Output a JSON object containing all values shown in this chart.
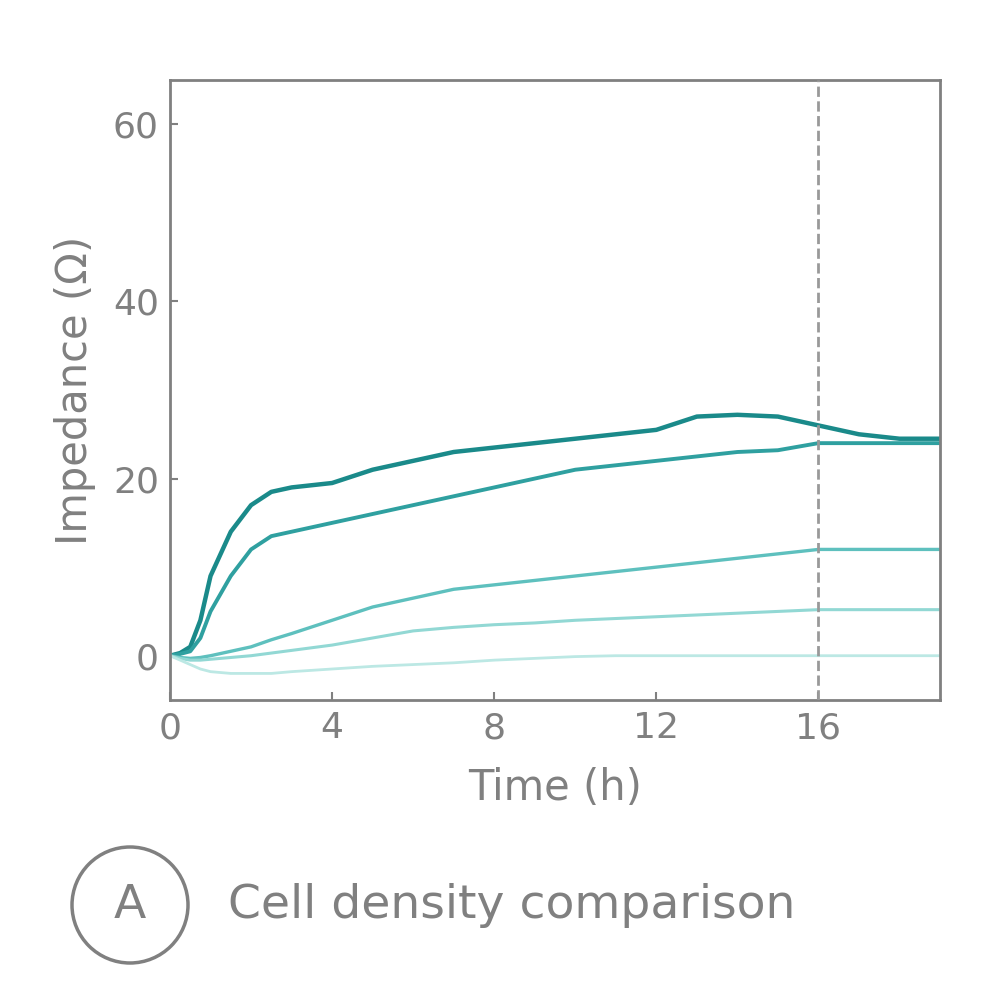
{
  "title": "Cell density comparison",
  "xlabel": "Time (h)",
  "ylabel": "Impedance (Ω)",
  "xlim": [
    0,
    19
  ],
  "ylim": [
    -5,
    65
  ],
  "xticks": [
    0,
    4,
    8,
    12,
    16
  ],
  "yticks": [
    0,
    20,
    40,
    60
  ],
  "dashed_vline_x": 16,
  "line_colors": [
    "#1a8a8a",
    "#2fa0a0",
    "#5ec0be",
    "#92d8d4",
    "#bce8e4"
  ],
  "line_widths": [
    3.2,
    2.8,
    2.4,
    2.2,
    2.0
  ],
  "series": [
    {
      "x": [
        0,
        0.25,
        0.5,
        0.75,
        1.0,
        1.5,
        2.0,
        2.5,
        3.0,
        4.0,
        5.0,
        6.0,
        7.0,
        8.0,
        9.0,
        10.0,
        11.0,
        12.0,
        13.0,
        14.0,
        15.0,
        16.0,
        17.0,
        18.0,
        19.0
      ],
      "y": [
        0,
        0.3,
        1,
        4,
        9,
        14,
        17,
        18.5,
        19,
        19.5,
        21,
        22,
        23,
        23.5,
        24,
        24.5,
        25,
        25.5,
        27,
        27.2,
        27.0,
        26.0,
        25.0,
        24.5,
        24.5
      ]
    },
    {
      "x": [
        0,
        0.25,
        0.5,
        0.75,
        1.0,
        1.5,
        2.0,
        2.5,
        3.0,
        4.0,
        5.0,
        6.0,
        7.0,
        8.0,
        9.0,
        10.0,
        11.0,
        12.0,
        13.0,
        14.0,
        15.0,
        16.0,
        17.0,
        18.0,
        19.0
      ],
      "y": [
        0,
        0.2,
        0.5,
        2,
        5,
        9,
        12,
        13.5,
        14,
        15,
        16,
        17,
        18,
        19,
        20,
        21,
        21.5,
        22,
        22.5,
        23,
        23.2,
        24,
        24,
        24,
        24
      ]
    },
    {
      "x": [
        0,
        0.25,
        0.5,
        0.75,
        1.0,
        1.5,
        2.0,
        2.5,
        3.0,
        4.0,
        5.0,
        6.0,
        7.0,
        8.0,
        9.0,
        10.0,
        11.0,
        12.0,
        13.0,
        14.0,
        15.0,
        16.0,
        17.0,
        18.0,
        19.0
      ],
      "y": [
        0,
        -0.2,
        -0.3,
        -0.2,
        0,
        0.5,
        1,
        1.8,
        2.5,
        4,
        5.5,
        6.5,
        7.5,
        8,
        8.5,
        9,
        9.5,
        10,
        10.5,
        11,
        11.5,
        12,
        12,
        12,
        12
      ]
    },
    {
      "x": [
        0,
        0.25,
        0.5,
        0.75,
        1.0,
        1.5,
        2.0,
        2.5,
        3.0,
        4.0,
        5.0,
        6.0,
        7.0,
        8.0,
        9.0,
        10.0,
        11.0,
        12.0,
        13.0,
        14.0,
        15.0,
        16.0,
        17.0,
        18.0,
        19.0
      ],
      "y": [
        0,
        -0.3,
        -0.5,
        -0.5,
        -0.4,
        -0.2,
        0,
        0.3,
        0.6,
        1.2,
        2.0,
        2.8,
        3.2,
        3.5,
        3.7,
        4.0,
        4.2,
        4.4,
        4.6,
        4.8,
        5.0,
        5.2,
        5.2,
        5.2,
        5.2
      ]
    },
    {
      "x": [
        0,
        0.25,
        0.5,
        0.75,
        1.0,
        1.5,
        2.0,
        2.5,
        3.0,
        4.0,
        5.0,
        6.0,
        7.0,
        8.0,
        9.0,
        10.0,
        11.0,
        12.0,
        13.0,
        14.0,
        15.0,
        16.0,
        17.0,
        18.0,
        19.0
      ],
      "y": [
        0,
        -0.5,
        -1.0,
        -1.5,
        -1.8,
        -2.0,
        -2.0,
        -2.0,
        -1.8,
        -1.5,
        -1.2,
        -1.0,
        -0.8,
        -0.5,
        -0.3,
        -0.1,
        0,
        0,
        0,
        0,
        0,
        0,
        0,
        0,
        0
      ]
    }
  ],
  "spine_color": "#808080",
  "tick_color": "#808080",
  "label_color": "#808080",
  "background_color": "#ffffff",
  "plot_bg_color": "#ffffff",
  "panel_label": "A",
  "panel_title": "Cell density comparison",
  "label_fontsize": 30,
  "tick_fontsize": 26,
  "panel_fontsize": 34
}
